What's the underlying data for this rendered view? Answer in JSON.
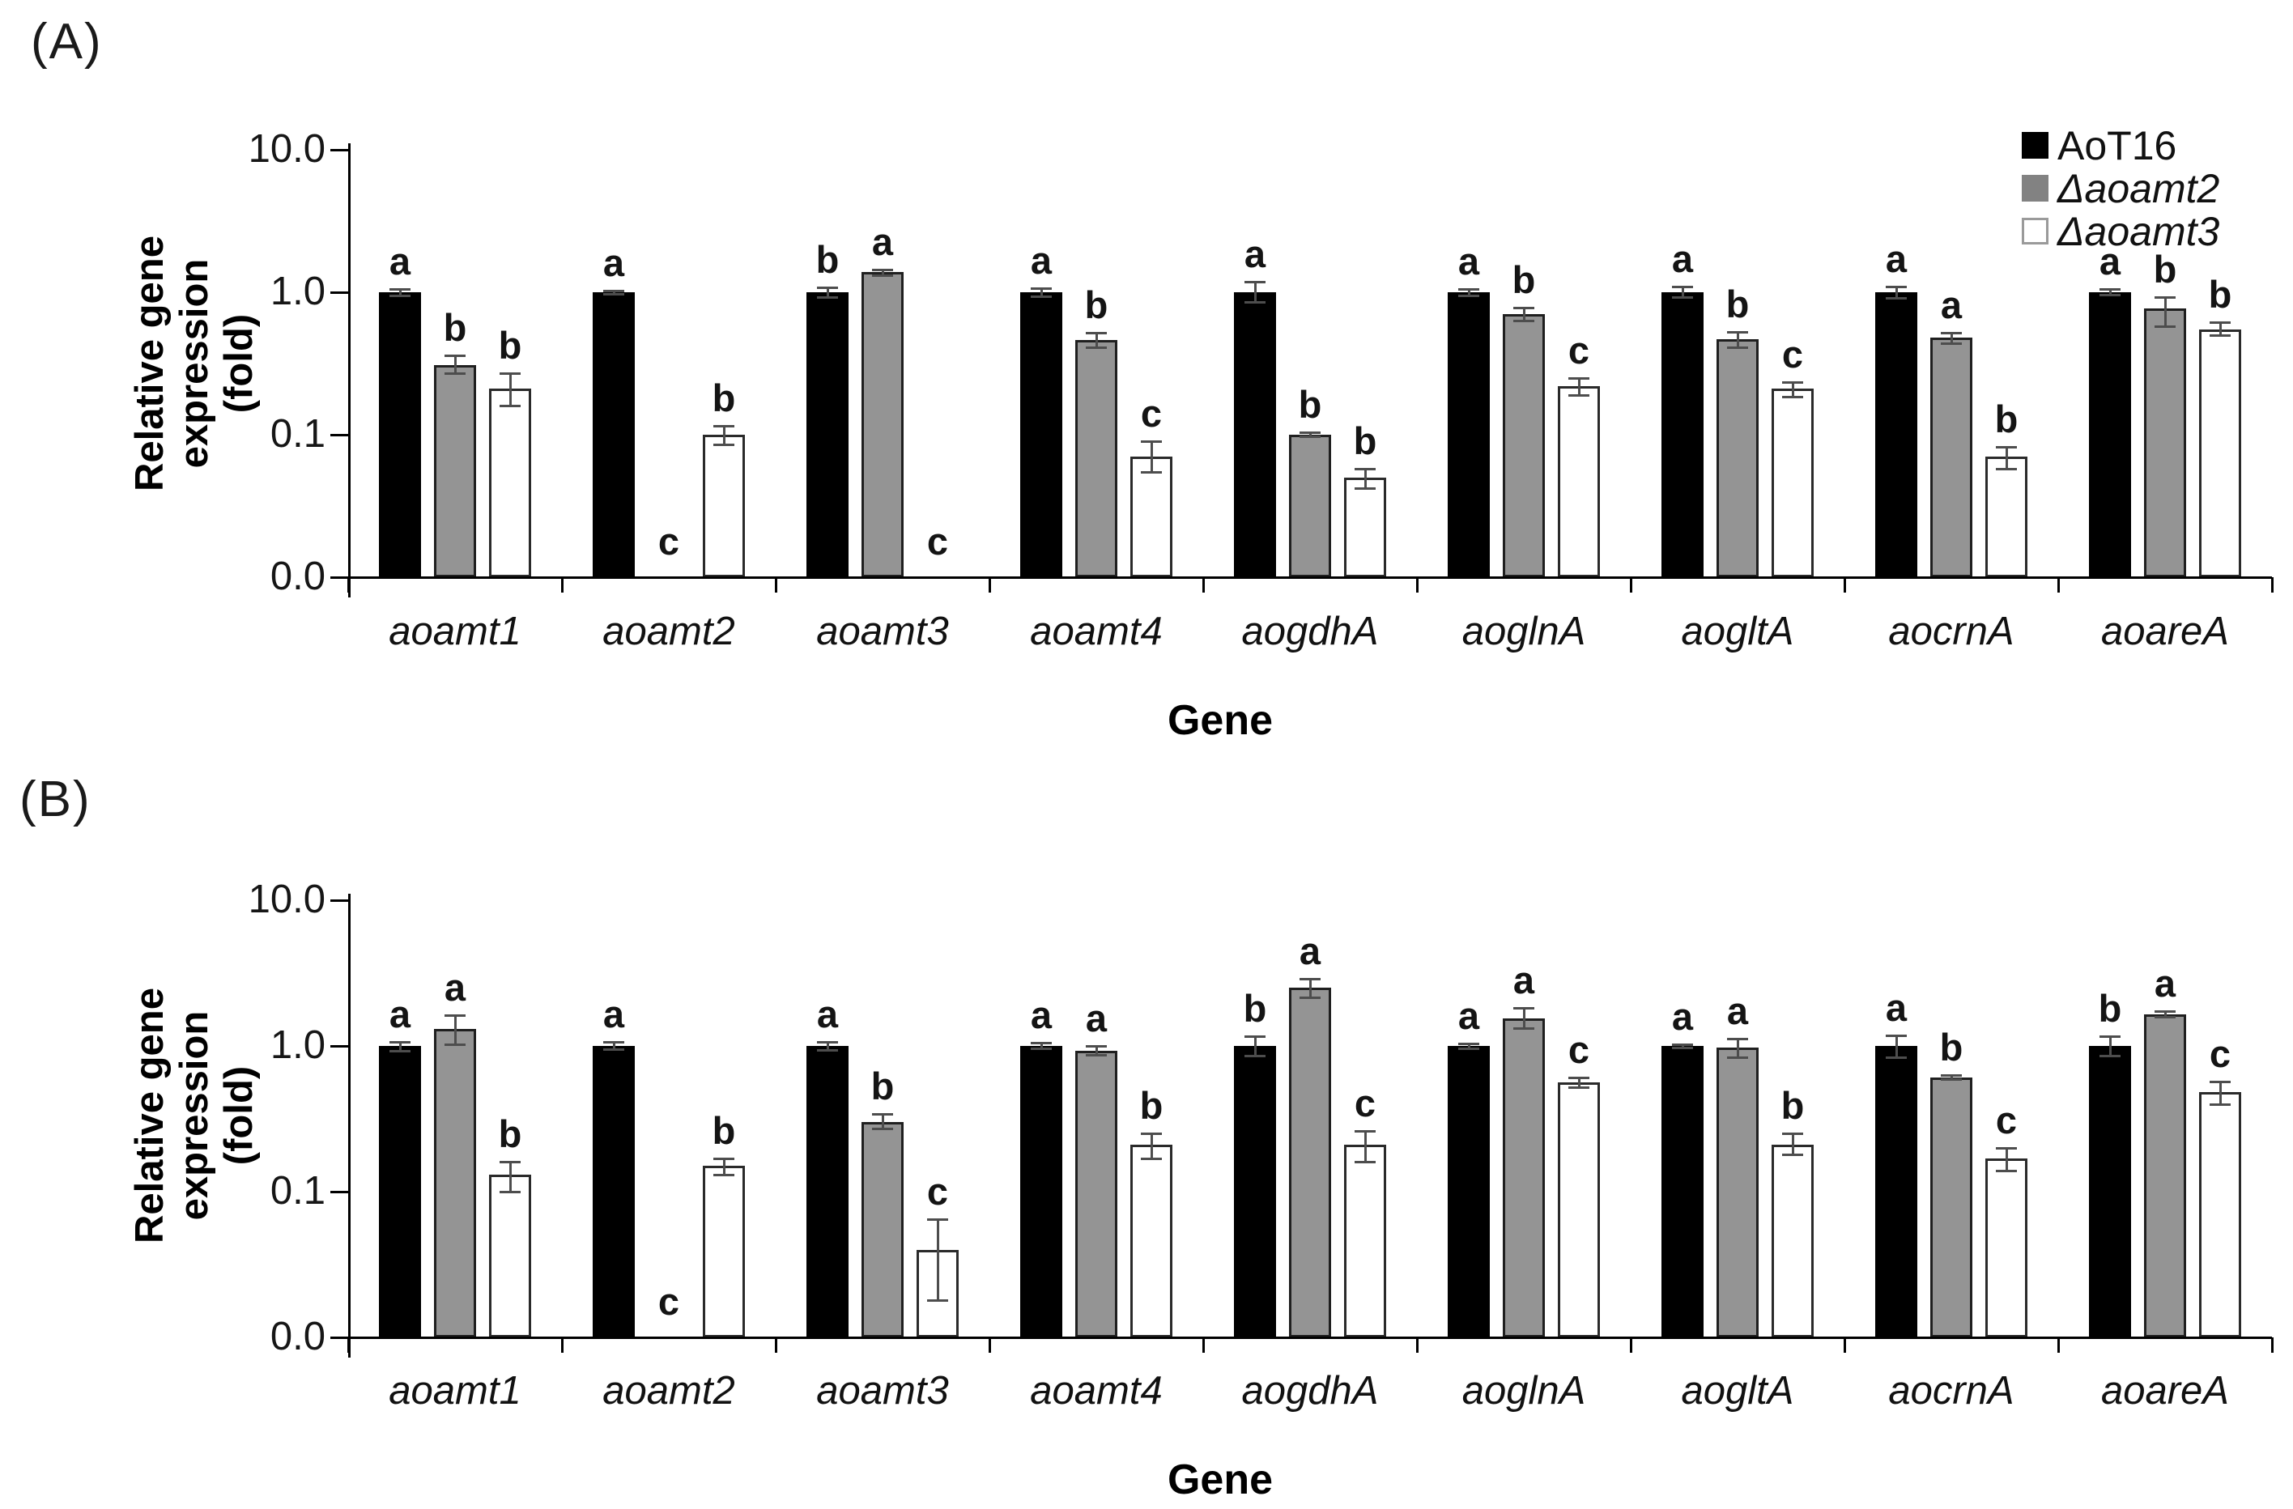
{
  "figure": {
    "panels": [
      {
        "label": "(A)",
        "y_axis_title_line1": "Relative gene expression",
        "y_axis_title_line2": "(fold)",
        "x_axis_title": "Gene",
        "y_tick_labels": [
          "10.0",
          "1.0",
          "0.1",
          "0.0"
        ]
      },
      {
        "label": "(B)",
        "y_axis_title_line1": "Relative gene expression",
        "y_axis_title_line2": "(fold)",
        "x_axis_title": "Gene",
        "y_tick_labels": [
          "10.0",
          "1.0",
          "0.1",
          "0.0"
        ]
      }
    ],
    "legend": {
      "items": [
        {
          "label": "AoT16",
          "swatch_color": "#000000",
          "italic": false
        },
        {
          "label": "Δaoamt2",
          "swatch_color": "#828282",
          "italic": true
        },
        {
          "label": "Δaoamt3",
          "swatch_color": "#ffffff",
          "italic": true
        }
      ]
    }
  },
  "chart_data": [
    {
      "type": "bar",
      "panel": "A",
      "title": "",
      "xlabel": "Gene",
      "ylabel": "Relative gene expression (fold)",
      "y_scale": "log",
      "y_tick_values": [
        10.0,
        1.0,
        0.1,
        0.0
      ],
      "ylim_note": "log axis, baseline labeled 0.0 sits one decade below 0.1",
      "legend_position": "top-right",
      "grid": false,
      "categories": [
        "aoamt1",
        "aoamt2",
        "aoamt3",
        "aoamt4",
        "aogdhA",
        "aoglnA",
        "aogltA",
        "aocrnA",
        "aoareA"
      ],
      "series": [
        {
          "name": "AoT16",
          "color": "#000000",
          "values": [
            1.0,
            1.0,
            1.0,
            1.0,
            1.0,
            1.0,
            1.0,
            1.0,
            1.0
          ],
          "errors_low": [
            0.95,
            0.97,
            0.93,
            0.94,
            0.85,
            0.95,
            0.92,
            0.91,
            0.96
          ],
          "errors_high": [
            1.06,
            1.03,
            1.08,
            1.07,
            1.18,
            1.06,
            1.09,
            1.1,
            1.05
          ],
          "letters": [
            "a",
            "a",
            "b",
            "a",
            "a",
            "a",
            "a",
            "a",
            "a"
          ]
        },
        {
          "name": "Δaoamt2",
          "color": "#949494",
          "values": [
            0.31,
            0,
            1.38,
            0.46,
            0.1,
            0.7,
            0.47,
            0.48,
            0.77
          ],
          "errors_low": [
            0.27,
            0,
            1.32,
            0.41,
            0.097,
            0.63,
            0.41,
            0.44,
            0.58
          ],
          "errors_high": [
            0.36,
            0,
            1.44,
            0.52,
            0.104,
            0.78,
            0.53,
            0.52,
            0.93
          ],
          "letters": [
            "b",
            "c",
            "a",
            "b",
            "b",
            "b",
            "b",
            "a",
            "b"
          ]
        },
        {
          "name": "Δaoamt3",
          "color": "#ffffff",
          "values": [
            0.21,
            0.1,
            0,
            0.07,
            0.05,
            0.22,
            0.21,
            0.07,
            0.55
          ],
          "errors_low": [
            0.16,
            0.085,
            0,
            0.055,
            0.042,
            0.19,
            0.185,
            0.058,
            0.5
          ],
          "errors_high": [
            0.27,
            0.115,
            0,
            0.09,
            0.058,
            0.25,
            0.235,
            0.082,
            0.62
          ],
          "letters": [
            "b",
            "b",
            "c",
            "c",
            "b",
            "c",
            "c",
            "b",
            "b"
          ]
        }
      ]
    },
    {
      "type": "bar",
      "panel": "B",
      "title": "",
      "xlabel": "Gene",
      "ylabel": "Relative gene expression (fold)",
      "y_scale": "log",
      "y_tick_values": [
        10.0,
        1.0,
        0.1,
        0.0
      ],
      "ylim_note": "log axis, baseline labeled 0.0 sits one decade below 0.1",
      "legend_position": "none",
      "grid": false,
      "categories": [
        "aoamt1",
        "aoamt2",
        "aoamt3",
        "aoamt4",
        "aogdhA",
        "aoglnA",
        "aogltA",
        "aocrnA",
        "aoareA"
      ],
      "series": [
        {
          "name": "AoT16",
          "color": "#000000",
          "values": [
            1.0,
            1.0,
            1.0,
            1.0,
            1.0,
            1.0,
            1.0,
            1.0,
            1.0
          ],
          "errors_low": [
            0.93,
            0.95,
            0.94,
            0.96,
            0.86,
            0.96,
            0.97,
            0.84,
            0.86
          ],
          "errors_high": [
            1.07,
            1.06,
            1.06,
            1.05,
            1.16,
            1.04,
            1.03,
            1.18,
            1.16
          ],
          "letters": [
            "a",
            "a",
            "a",
            "a",
            "b",
            "a",
            "a",
            "a",
            "b"
          ]
        },
        {
          "name": "Δaoamt2",
          "color": "#949494",
          "values": [
            1.3,
            0,
            0.3,
            0.93,
            2.5,
            1.55,
            0.97,
            0.61,
            1.65
          ],
          "errors_low": [
            1.03,
            0,
            0.27,
            0.87,
            2.15,
            1.33,
            0.84,
            0.59,
            1.58
          ],
          "errors_high": [
            1.63,
            0,
            0.34,
            1.0,
            2.9,
            1.82,
            1.12,
            0.63,
            1.73
          ],
          "letters": [
            "a",
            "c",
            "b",
            "a",
            "a",
            "a",
            "a",
            "b",
            "a"
          ]
        },
        {
          "name": "Δaoamt3",
          "color": "#ffffff",
          "values": [
            0.13,
            0.15,
            0.04,
            0.21,
            0.21,
            0.56,
            0.21,
            0.17,
            0.48
          ],
          "errors_low": [
            0.1,
            0.13,
            0.018,
            0.17,
            0.16,
            0.52,
            0.18,
            0.14,
            0.4
          ],
          "errors_high": [
            0.16,
            0.17,
            0.065,
            0.25,
            0.26,
            0.61,
            0.25,
            0.2,
            0.57
          ],
          "letters": [
            "b",
            "b",
            "c",
            "b",
            "c",
            "c",
            "b",
            "c",
            "c"
          ]
        }
      ]
    }
  ]
}
